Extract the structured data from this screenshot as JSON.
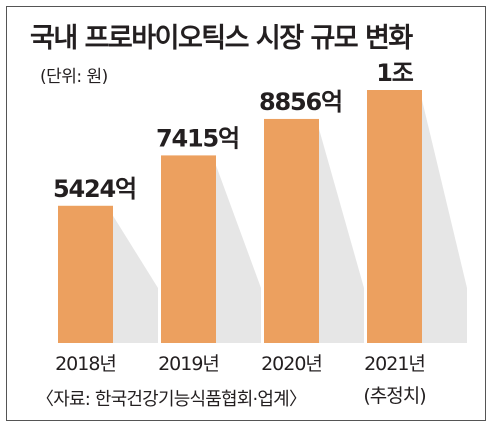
{
  "chart_data": {
    "type": "bar",
    "title": "국내 프로바이오틱스 시장 규모 변화",
    "unit_note": "(단위: 원)",
    "categories": [
      "2018년",
      "2019년",
      "2020년",
      "2021년"
    ],
    "category_sublabels": [
      "",
      "",
      "",
      "(추정치)"
    ],
    "values": [
      5424,
      7415,
      8856,
      10000
    ],
    "value_labels": [
      "5424억",
      "7415억",
      "8856억",
      "1조"
    ],
    "value_unit": "억 원",
    "ylim": [
      0,
      10000
    ],
    "grid": false,
    "legend": "none",
    "source": "〈자료: 한국건강기능식품협회·업계〉",
    "colors": {
      "bar": "#eca05f",
      "shadow": "#e6e6e6",
      "text": "#231f20"
    }
  }
}
